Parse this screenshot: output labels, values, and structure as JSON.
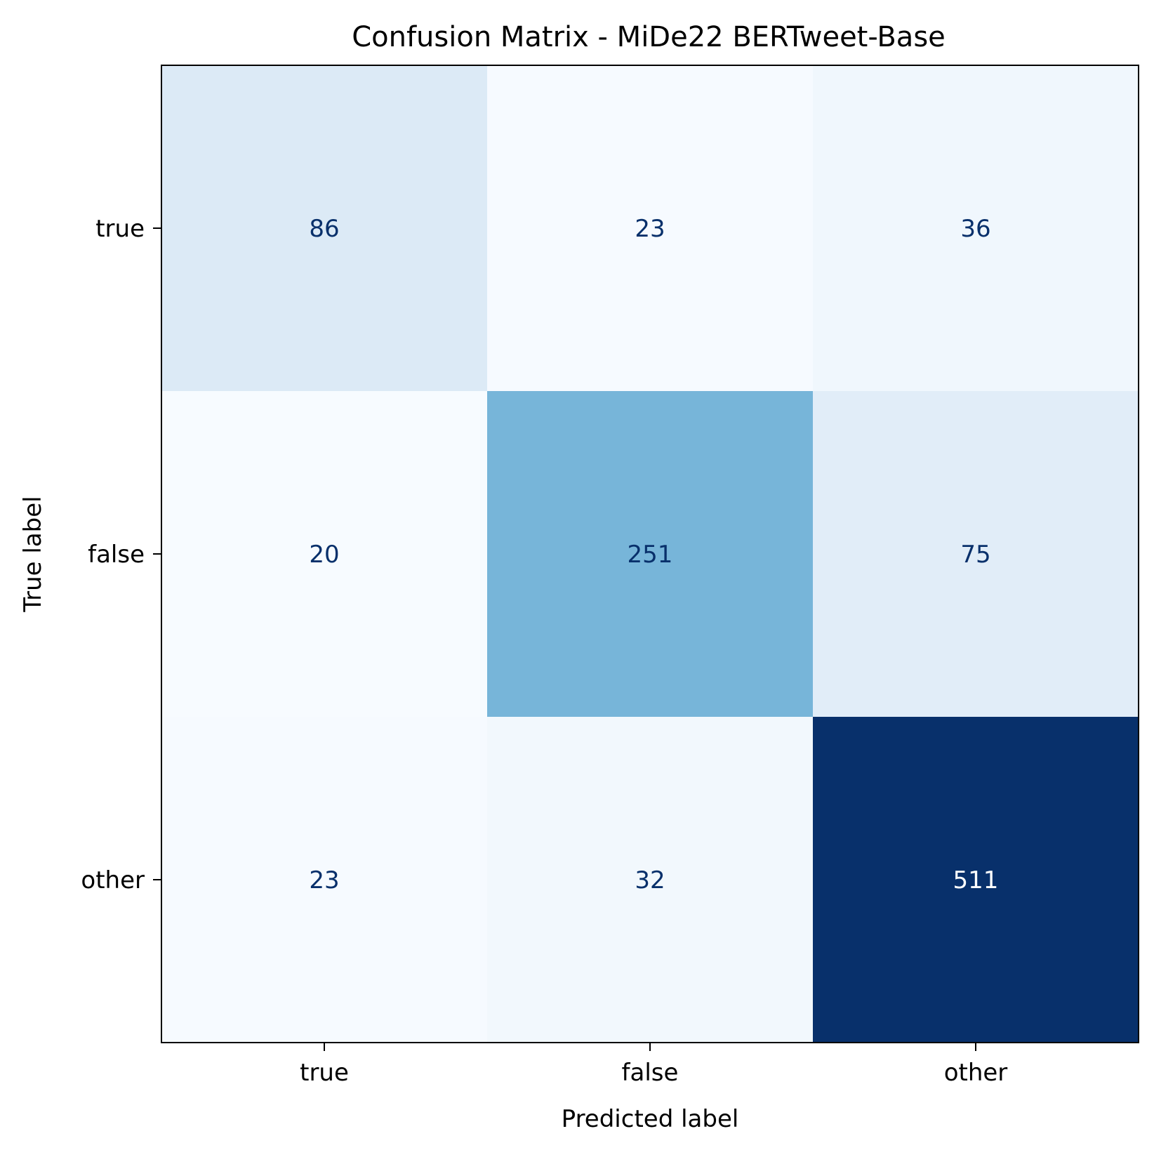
{
  "chart_data": {
    "type": "heatmap",
    "title": "Confusion Matrix - MiDe22 BERTweet-Base",
    "xlabel": "Predicted label",
    "ylabel": "True label",
    "x_categories": [
      "true",
      "false",
      "other"
    ],
    "y_categories": [
      "true",
      "false",
      "other"
    ],
    "values": [
      [
        86,
        23,
        36
      ],
      [
        20,
        251,
        75
      ],
      [
        23,
        32,
        511
      ]
    ],
    "colormap": "Blues",
    "colormap_low": "#f7fbff",
    "colormap_high": "#08306b",
    "text_color_dark": "#08306b",
    "text_color_light": "#ffffff",
    "colorbar": false,
    "grid": false
  }
}
